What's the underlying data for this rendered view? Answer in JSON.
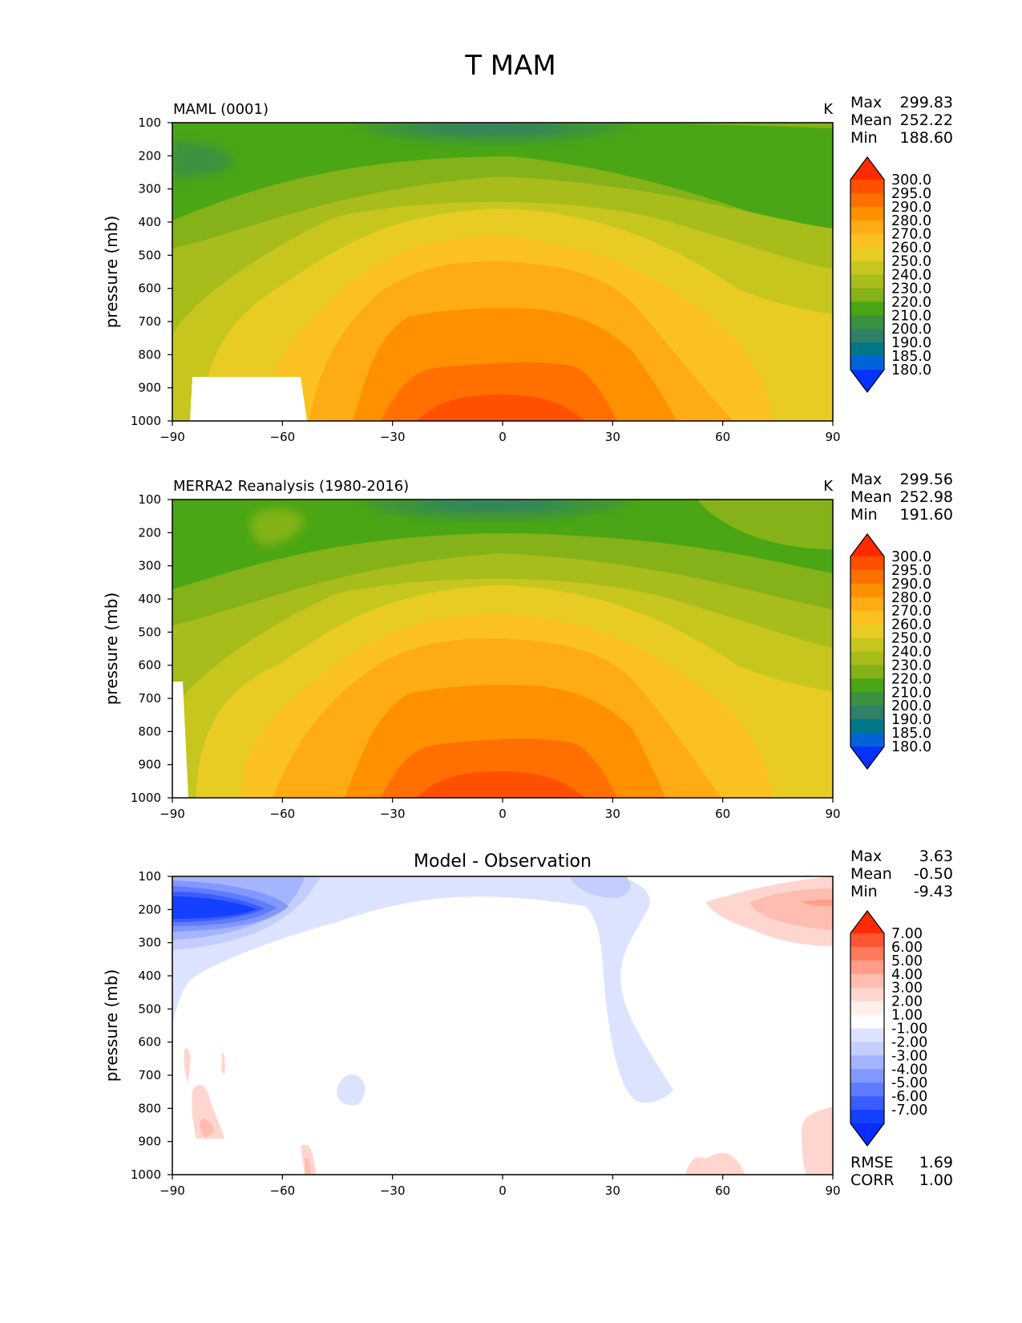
{
  "chart_data": {
    "type": "heatmap",
    "title": "T MAM",
    "x_ticks": [
      -90,
      -60,
      -30,
      0,
      30,
      60,
      90
    ],
    "x_tick_labels": [
      "−90",
      "−60",
      "−30",
      "0",
      "30",
      "60",
      "90"
    ],
    "xlim": [
      -90,
      90
    ],
    "y_ticks": [
      100,
      200,
      300,
      400,
      500,
      600,
      700,
      800,
      900,
      1000
    ],
    "ylim": [
      100,
      1000
    ],
    "panels": [
      {
        "key": "model",
        "label": "MAML (0001)",
        "unit": "K",
        "ylabel": "pressure (mb)",
        "stats": [
          {
            "name": "Max",
            "value": "299.83"
          },
          {
            "name": "Mean",
            "value": "252.22"
          },
          {
            "name": "Min",
            "value": "188.60"
          }
        ],
        "colorbar_levels": [
          "300.0",
          "295.0",
          "290.0",
          "280.0",
          "270.0",
          "260.0",
          "250.0",
          "240.0",
          "230.0",
          "220.0",
          "210.0",
          "200.0",
          "190.0",
          "185.0",
          "180.0"
        ]
      },
      {
        "key": "obs",
        "label": "MERRA2 Reanalysis (1980-2016)",
        "unit": "K",
        "ylabel": "pressure (mb)",
        "stats": [
          {
            "name": "Max",
            "value": "299.56"
          },
          {
            "name": "Mean",
            "value": "252.98"
          },
          {
            "name": "Min",
            "value": "191.60"
          }
        ],
        "colorbar_levels": [
          "300.0",
          "295.0",
          "290.0",
          "280.0",
          "270.0",
          "260.0",
          "250.0",
          "240.0",
          "230.0",
          "220.0",
          "210.0",
          "200.0",
          "190.0",
          "185.0",
          "180.0"
        ]
      },
      {
        "key": "diff",
        "title": "Model - Observation",
        "ylabel": "pressure (mb)",
        "stats": [
          {
            "name": "Max",
            "value": "3.63"
          },
          {
            "name": "Mean",
            "value": "-0.50"
          },
          {
            "name": "Min",
            "value": "-9.43"
          }
        ],
        "colorbar_levels": [
          "7.00",
          "6.00",
          "5.00",
          "4.00",
          "3.00",
          "2.00",
          "1.00",
          "-1.00",
          "-2.00",
          "-3.00",
          "-4.00",
          "-5.00",
          "-6.00",
          "-7.00"
        ],
        "metrics": [
          {
            "name": "RMSE",
            "value": "1.69"
          },
          {
            "name": "CORR",
            "value": "1.00"
          }
        ]
      }
    ]
  },
  "colors": {
    "temp_scale": [
      "#ff2a00",
      "#ff5000",
      "#ff7000",
      "#ff9000",
      "#ffab14",
      "#fbc120",
      "#e8cc23",
      "#c7c61e",
      "#a8bc1c",
      "#84b218",
      "#4aa614",
      "#3a9240",
      "#2f8068",
      "#00788a",
      "#0064d8",
      "#0532ff"
    ],
    "diff_scale": [
      "#ff2a00",
      "#ff5533",
      "#ff7a5c",
      "#ff9d88",
      "#ffbcb0",
      "#ffd6cf",
      "#ffeeea",
      "#ffffff",
      "#dce3ff",
      "#c3ceff",
      "#a4b4ff",
      "#8398ff",
      "#5f7bff",
      "#3c5cff",
      "#1440ff",
      "#0a2cff"
    ]
  }
}
